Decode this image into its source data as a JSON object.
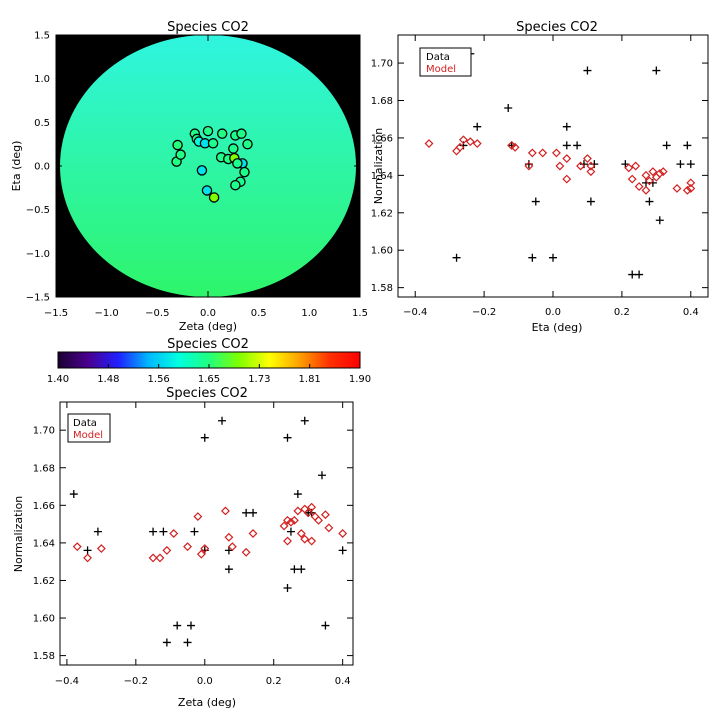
{
  "chart_data": [
    {
      "type": "heatmap",
      "title": "Species CO2",
      "xlabel": "Zeta (deg)",
      "ylabel": "Eta (deg)",
      "xlim": [
        -1.5,
        1.5
      ],
      "ylim": [
        -1.5,
        1.5
      ],
      "x_ticks": [
        "−1.5",
        "−1.0",
        "−0.5",
        "0.0",
        "0.5",
        "1.0",
        "1.5"
      ],
      "y_ticks": [
        "−1.5",
        "−1.0",
        "−0.5",
        "0.0",
        "0.5",
        "1.0",
        "1.5"
      ],
      "colors": {
        "background": "#000000",
        "field_top": "#2ff5e0",
        "field_bottom": "#2ef56a",
        "circle_edge": "#000000"
      },
      "points": [
        {
          "zeta": -0.31,
          "eta": 0.05,
          "value": 1.648
        },
        {
          "zeta": -0.27,
          "eta": 0.13,
          "value": 1.648
        },
        {
          "zeta": -0.3,
          "eta": 0.24,
          "value": 1.652
        },
        {
          "zeta": -0.13,
          "eta": 0.37,
          "value": 1.645
        },
        {
          "zeta": -0.11,
          "eta": 0.31,
          "value": 1.642
        },
        {
          "zeta": -0.09,
          "eta": 0.28,
          "value": 1.6
        },
        {
          "zeta": 0.0,
          "eta": 0.4,
          "value": 1.645
        },
        {
          "zeta": -0.03,
          "eta": 0.26,
          "value": 1.58
        },
        {
          "zeta": 0.05,
          "eta": 0.26,
          "value": 1.642
        },
        {
          "zeta": 0.14,
          "eta": 0.37,
          "value": 1.648
        },
        {
          "zeta": 0.13,
          "eta": 0.1,
          "value": 1.645
        },
        {
          "zeta": 0.2,
          "eta": 0.08,
          "value": 1.647
        },
        {
          "zeta": -0.06,
          "eta": -0.05,
          "value": 1.58
        },
        {
          "zeta": -0.01,
          "eta": -0.28,
          "value": 1.58
        },
        {
          "zeta": 0.06,
          "eta": -0.36,
          "value": 1.7
        },
        {
          "zeta": 0.27,
          "eta": 0.35,
          "value": 1.643
        },
        {
          "zeta": 0.33,
          "eta": 0.37,
          "value": 1.646
        },
        {
          "zeta": 0.25,
          "eta": 0.2,
          "value": 1.645
        },
        {
          "zeta": 0.26,
          "eta": 0.09,
          "value": 1.7
        },
        {
          "zeta": 0.34,
          "eta": 0.03,
          "value": 1.58
        },
        {
          "zeta": 0.29,
          "eta": 0.03,
          "value": 1.643
        },
        {
          "zeta": 0.36,
          "eta": -0.07,
          "value": 1.646
        },
        {
          "zeta": 0.32,
          "eta": -0.18,
          "value": 1.64
        },
        {
          "zeta": 0.39,
          "eta": 0.25,
          "value": 1.645
        },
        {
          "zeta": 0.27,
          "eta": -0.22,
          "value": 1.644
        }
      ]
    },
    {
      "type": "scatter",
      "title": "Species CO2",
      "xlabel": "Eta (deg)",
      "ylabel": "Normalization",
      "xlim": [
        -0.45,
        0.45
      ],
      "ylim": [
        1.575,
        1.715
      ],
      "x_ticks": [
        "−0.4",
        "−0.2",
        "0.0",
        "0.2",
        "0.4"
      ],
      "y_ticks": [
        "1.58",
        "1.60",
        "1.62",
        "1.64",
        "1.66",
        "1.68",
        "1.70"
      ],
      "legend": {
        "position": "top-left",
        "entries": [
          "Data",
          "Model"
        ]
      },
      "series": [
        {
          "name": "Data",
          "marker": "plus",
          "color": "#000000",
          "points": [
            [
              -0.36,
              1.705
            ],
            [
              -0.28,
              1.596
            ],
            [
              -0.26,
              1.656
            ],
            [
              -0.24,
              1.705
            ],
            [
              -0.22,
              1.666
            ],
            [
              -0.13,
              1.676
            ],
            [
              -0.12,
              1.656
            ],
            [
              -0.07,
              1.646
            ],
            [
              -0.06,
              1.596
            ],
            [
              -0.05,
              1.626
            ],
            [
              0.0,
              1.596
            ],
            [
              0.04,
              1.666
            ],
            [
              0.04,
              1.656
            ],
            [
              0.07,
              1.656
            ],
            [
              0.09,
              1.646
            ],
            [
              0.1,
              1.696
            ],
            [
              0.11,
              1.626
            ],
            [
              0.12,
              1.646
            ],
            [
              0.21,
              1.646
            ],
            [
              0.23,
              1.587
            ],
            [
              0.25,
              1.587
            ],
            [
              0.27,
              1.636
            ],
            [
              0.28,
              1.626
            ],
            [
              0.29,
              1.636
            ],
            [
              0.3,
              1.696
            ],
            [
              0.31,
              1.616
            ],
            [
              0.33,
              1.656
            ],
            [
              0.37,
              1.646
            ],
            [
              0.39,
              1.656
            ],
            [
              0.4,
              1.646
            ]
          ]
        },
        {
          "name": "Model",
          "marker": "diamond",
          "color": "#d42020",
          "points": [
            [
              -0.36,
              1.657
            ],
            [
              -0.28,
              1.653
            ],
            [
              -0.27,
              1.655
            ],
            [
              -0.26,
              1.659
            ],
            [
              -0.24,
              1.658
            ],
            [
              -0.22,
              1.657
            ],
            [
              -0.12,
              1.656
            ],
            [
              -0.11,
              1.655
            ],
            [
              -0.06,
              1.652
            ],
            [
              -0.07,
              1.645
            ],
            [
              -0.03,
              1.652
            ],
            [
              0.01,
              1.652
            ],
            [
              0.02,
              1.645
            ],
            [
              0.04,
              1.649
            ],
            [
              0.04,
              1.638
            ],
            [
              0.08,
              1.645
            ],
            [
              0.1,
              1.649
            ],
            [
              0.11,
              1.645
            ],
            [
              0.11,
              1.642
            ],
            [
              0.22,
              1.644
            ],
            [
              0.24,
              1.645
            ],
            [
              0.23,
              1.638
            ],
            [
              0.25,
              1.634
            ],
            [
              0.27,
              1.64
            ],
            [
              0.27,
              1.632
            ],
            [
              0.28,
              1.637
            ],
            [
              0.29,
              1.642
            ],
            [
              0.3,
              1.639
            ],
            [
              0.31,
              1.641
            ],
            [
              0.32,
              1.642
            ],
            [
              0.36,
              1.633
            ],
            [
              0.39,
              1.632
            ],
            [
              0.4,
              1.636
            ],
            [
              0.4,
              1.633
            ]
          ]
        }
      ]
    },
    {
      "type": "colorbar",
      "title": "Species CO2",
      "tick_labels": [
        "1.40",
        "1.48",
        "1.56",
        "1.65",
        "1.73",
        "1.81",
        "1.90"
      ],
      "range": [
        1.4,
        1.9
      ],
      "colormap": [
        "#1a0030",
        "#4a0090",
        "#2020ff",
        "#00b8ff",
        "#00ffe0",
        "#20ff80",
        "#80ff00",
        "#ffff00",
        "#ffa000",
        "#ff3000",
        "#ff0000"
      ]
    },
    {
      "type": "scatter",
      "title": "Species CO2",
      "xlabel": "Zeta (deg)",
      "ylabel": "Normalization",
      "xlim": [
        -0.42,
        0.43
      ],
      "ylim": [
        1.575,
        1.715
      ],
      "x_ticks": [
        "−0.4",
        "−0.2",
        "0.0",
        "0.2",
        "0.4"
      ],
      "y_ticks": [
        "1.58",
        "1.60",
        "1.62",
        "1.64",
        "1.66",
        "1.68",
        "1.70"
      ],
      "legend": {
        "position": "top-left",
        "entries": [
          "Data",
          "Model"
        ]
      },
      "series": [
        {
          "name": "Data",
          "marker": "plus",
          "color": "#000000",
          "points": [
            [
              -0.38,
              1.666
            ],
            [
              -0.34,
              1.636
            ],
            [
              -0.31,
              1.646
            ],
            [
              -0.15,
              1.646
            ],
            [
              -0.12,
              1.646
            ],
            [
              -0.11,
              1.587
            ],
            [
              -0.08,
              1.596
            ],
            [
              -0.05,
              1.587
            ],
            [
              -0.04,
              1.596
            ],
            [
              -0.03,
              1.646
            ],
            [
              0.0,
              1.696
            ],
            [
              0.0,
              1.636
            ],
            [
              0.05,
              1.705
            ],
            [
              0.07,
              1.636
            ],
            [
              0.07,
              1.626
            ],
            [
              0.12,
              1.656
            ],
            [
              0.14,
              1.656
            ],
            [
              0.24,
              1.696
            ],
            [
              0.24,
              1.616
            ],
            [
              0.25,
              1.646
            ],
            [
              0.26,
              1.626
            ],
            [
              0.27,
              1.666
            ],
            [
              0.28,
              1.626
            ],
            [
              0.29,
              1.705
            ],
            [
              0.3,
              1.656
            ],
            [
              0.31,
              1.656
            ],
            [
              0.34,
              1.676
            ],
            [
              0.35,
              1.596
            ],
            [
              0.4,
              1.636
            ]
          ]
        },
        {
          "name": "Model",
          "marker": "diamond",
          "color": "#d42020",
          "points": [
            [
              -0.37,
              1.638
            ],
            [
              -0.34,
              1.632
            ],
            [
              -0.3,
              1.637
            ],
            [
              -0.15,
              1.632
            ],
            [
              -0.13,
              1.632
            ],
            [
              -0.11,
              1.636
            ],
            [
              -0.09,
              1.645
            ],
            [
              -0.05,
              1.638
            ],
            [
              -0.02,
              1.654
            ],
            [
              -0.01,
              1.634
            ],
            [
              0.0,
              1.637
            ],
            [
              0.06,
              1.657
            ],
            [
              0.07,
              1.643
            ],
            [
              0.08,
              1.638
            ],
            [
              0.12,
              1.635
            ],
            [
              0.14,
              1.645
            ],
            [
              0.23,
              1.649
            ],
            [
              0.24,
              1.641
            ],
            [
              0.24,
              1.652
            ],
            [
              0.25,
              1.651
            ],
            [
              0.26,
              1.652
            ],
            [
              0.27,
              1.657
            ],
            [
              0.28,
              1.645
            ],
            [
              0.29,
              1.658
            ],
            [
              0.29,
              1.642
            ],
            [
              0.3,
              1.656
            ],
            [
              0.31,
              1.641
            ],
            [
              0.31,
              1.659
            ],
            [
              0.32,
              1.654
            ],
            [
              0.33,
              1.652
            ],
            [
              0.35,
              1.655
            ],
            [
              0.36,
              1.648
            ],
            [
              0.4,
              1.645
            ]
          ]
        }
      ]
    }
  ]
}
